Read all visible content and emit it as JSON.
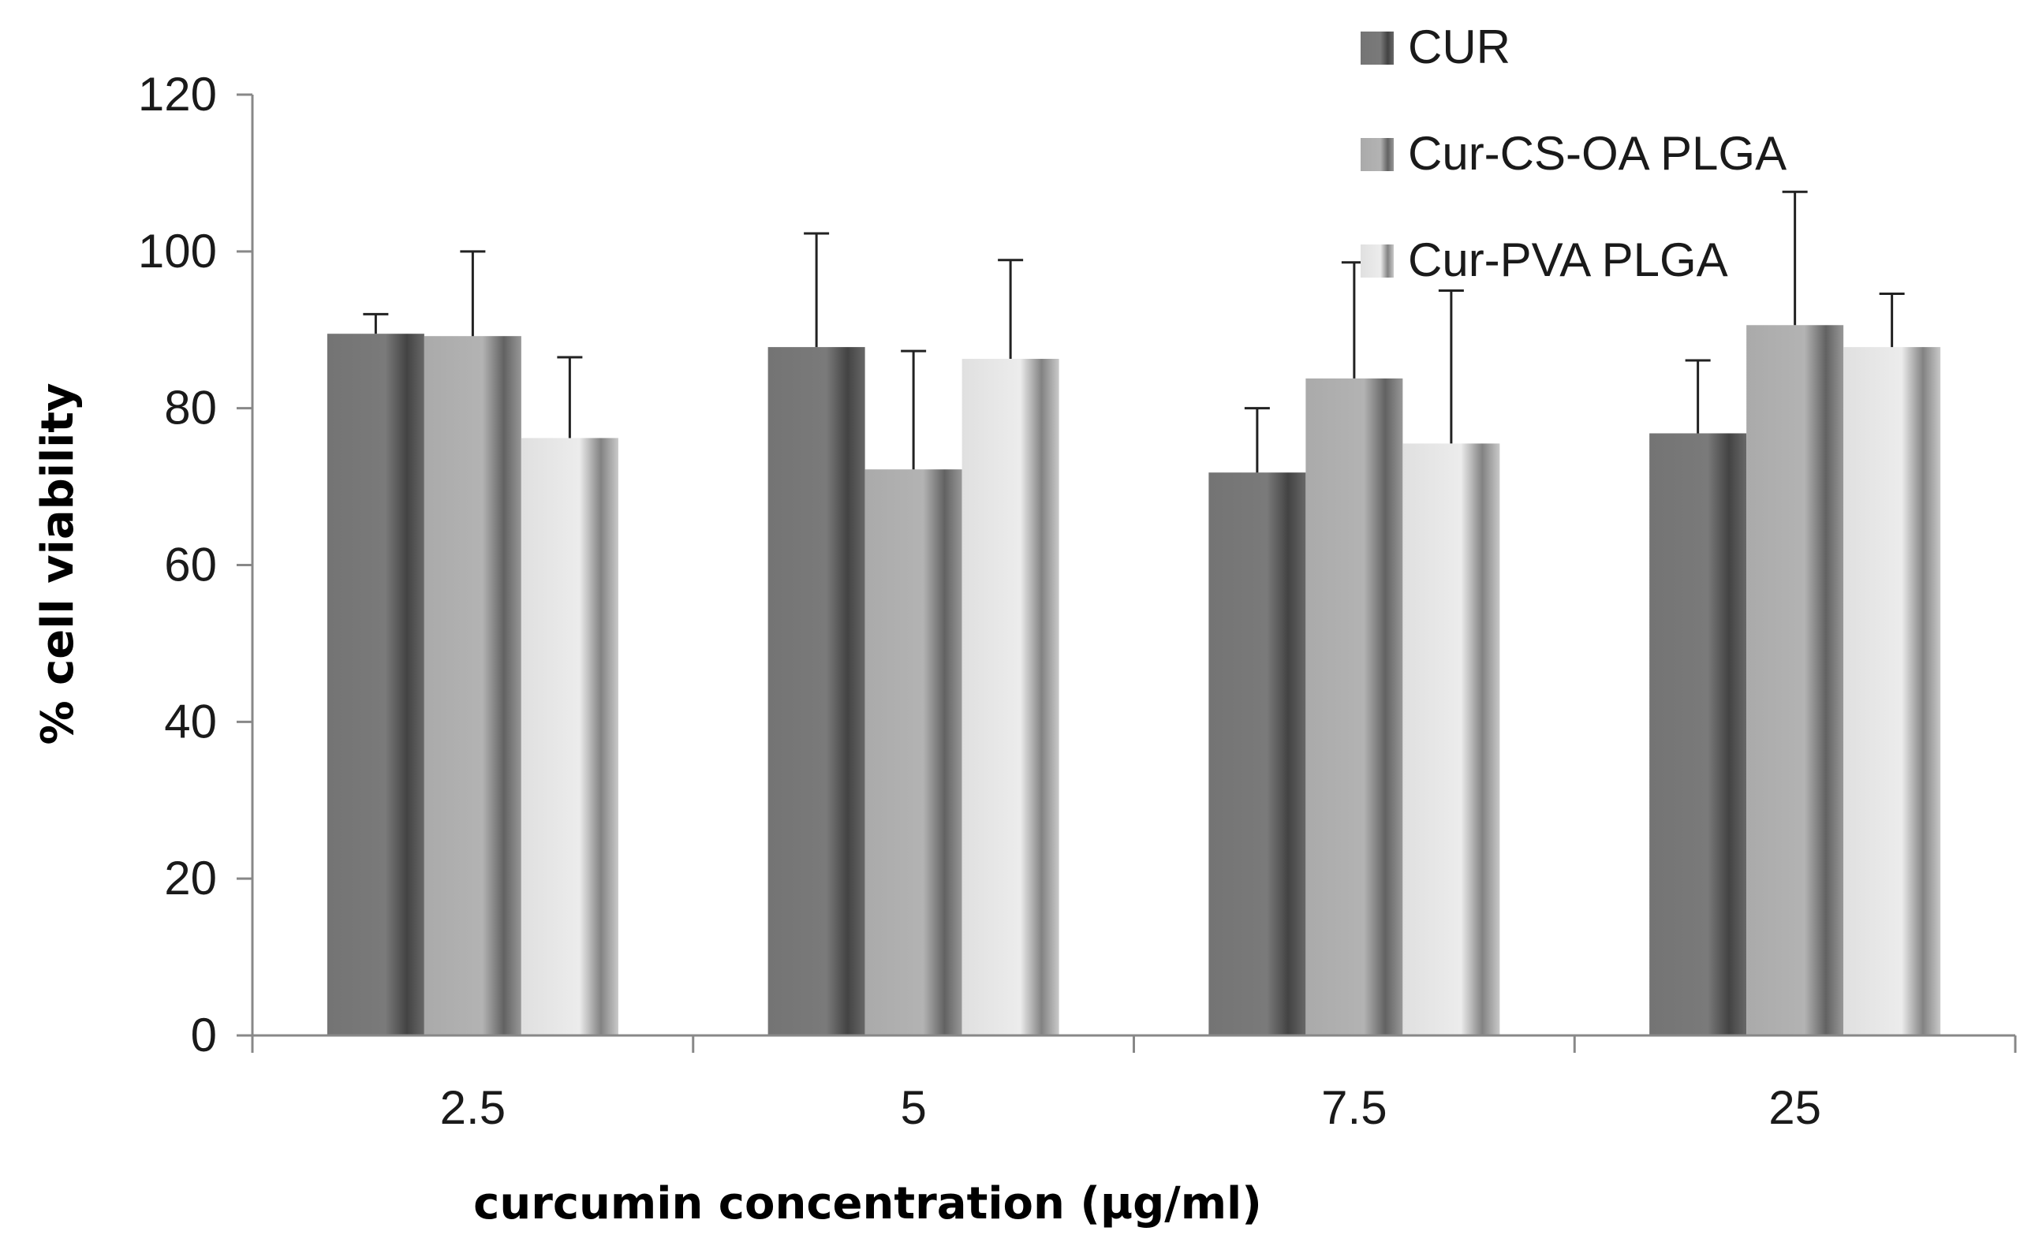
{
  "chart_data": {
    "type": "bar",
    "title": "",
    "xlabel": "curcumin concentration (µg/ml)",
    "ylabel": "% cell viability",
    "categories": [
      "2.5",
      "5",
      "7.5",
      "25"
    ],
    "ylim": [
      0,
      120
    ],
    "yticks": [
      "0",
      "20",
      "40",
      "60",
      "80",
      "100",
      "120"
    ],
    "grid": false,
    "legend_position": "top-right",
    "series": [
      {
        "name": "CUR",
        "values": [
          89.5,
          87.8,
          71.8,
          76.8
        ],
        "errors": [
          2.5,
          14.5,
          8.2,
          9.3
        ],
        "color": "#7a7a7a"
      },
      {
        "name": "Cur-CS-OA PLGA",
        "values": [
          89.2,
          72.2,
          83.8,
          90.6
        ],
        "errors": [
          10.8,
          15.1,
          14.8,
          17.0
        ],
        "color": "#b3b3b3"
      },
      {
        "name": "Cur-PVA PLGA",
        "values": [
          76.2,
          86.3,
          75.5,
          87.8
        ],
        "errors": [
          10.3,
          12.6,
          19.5,
          6.8
        ],
        "color": "#ececec"
      }
    ]
  }
}
